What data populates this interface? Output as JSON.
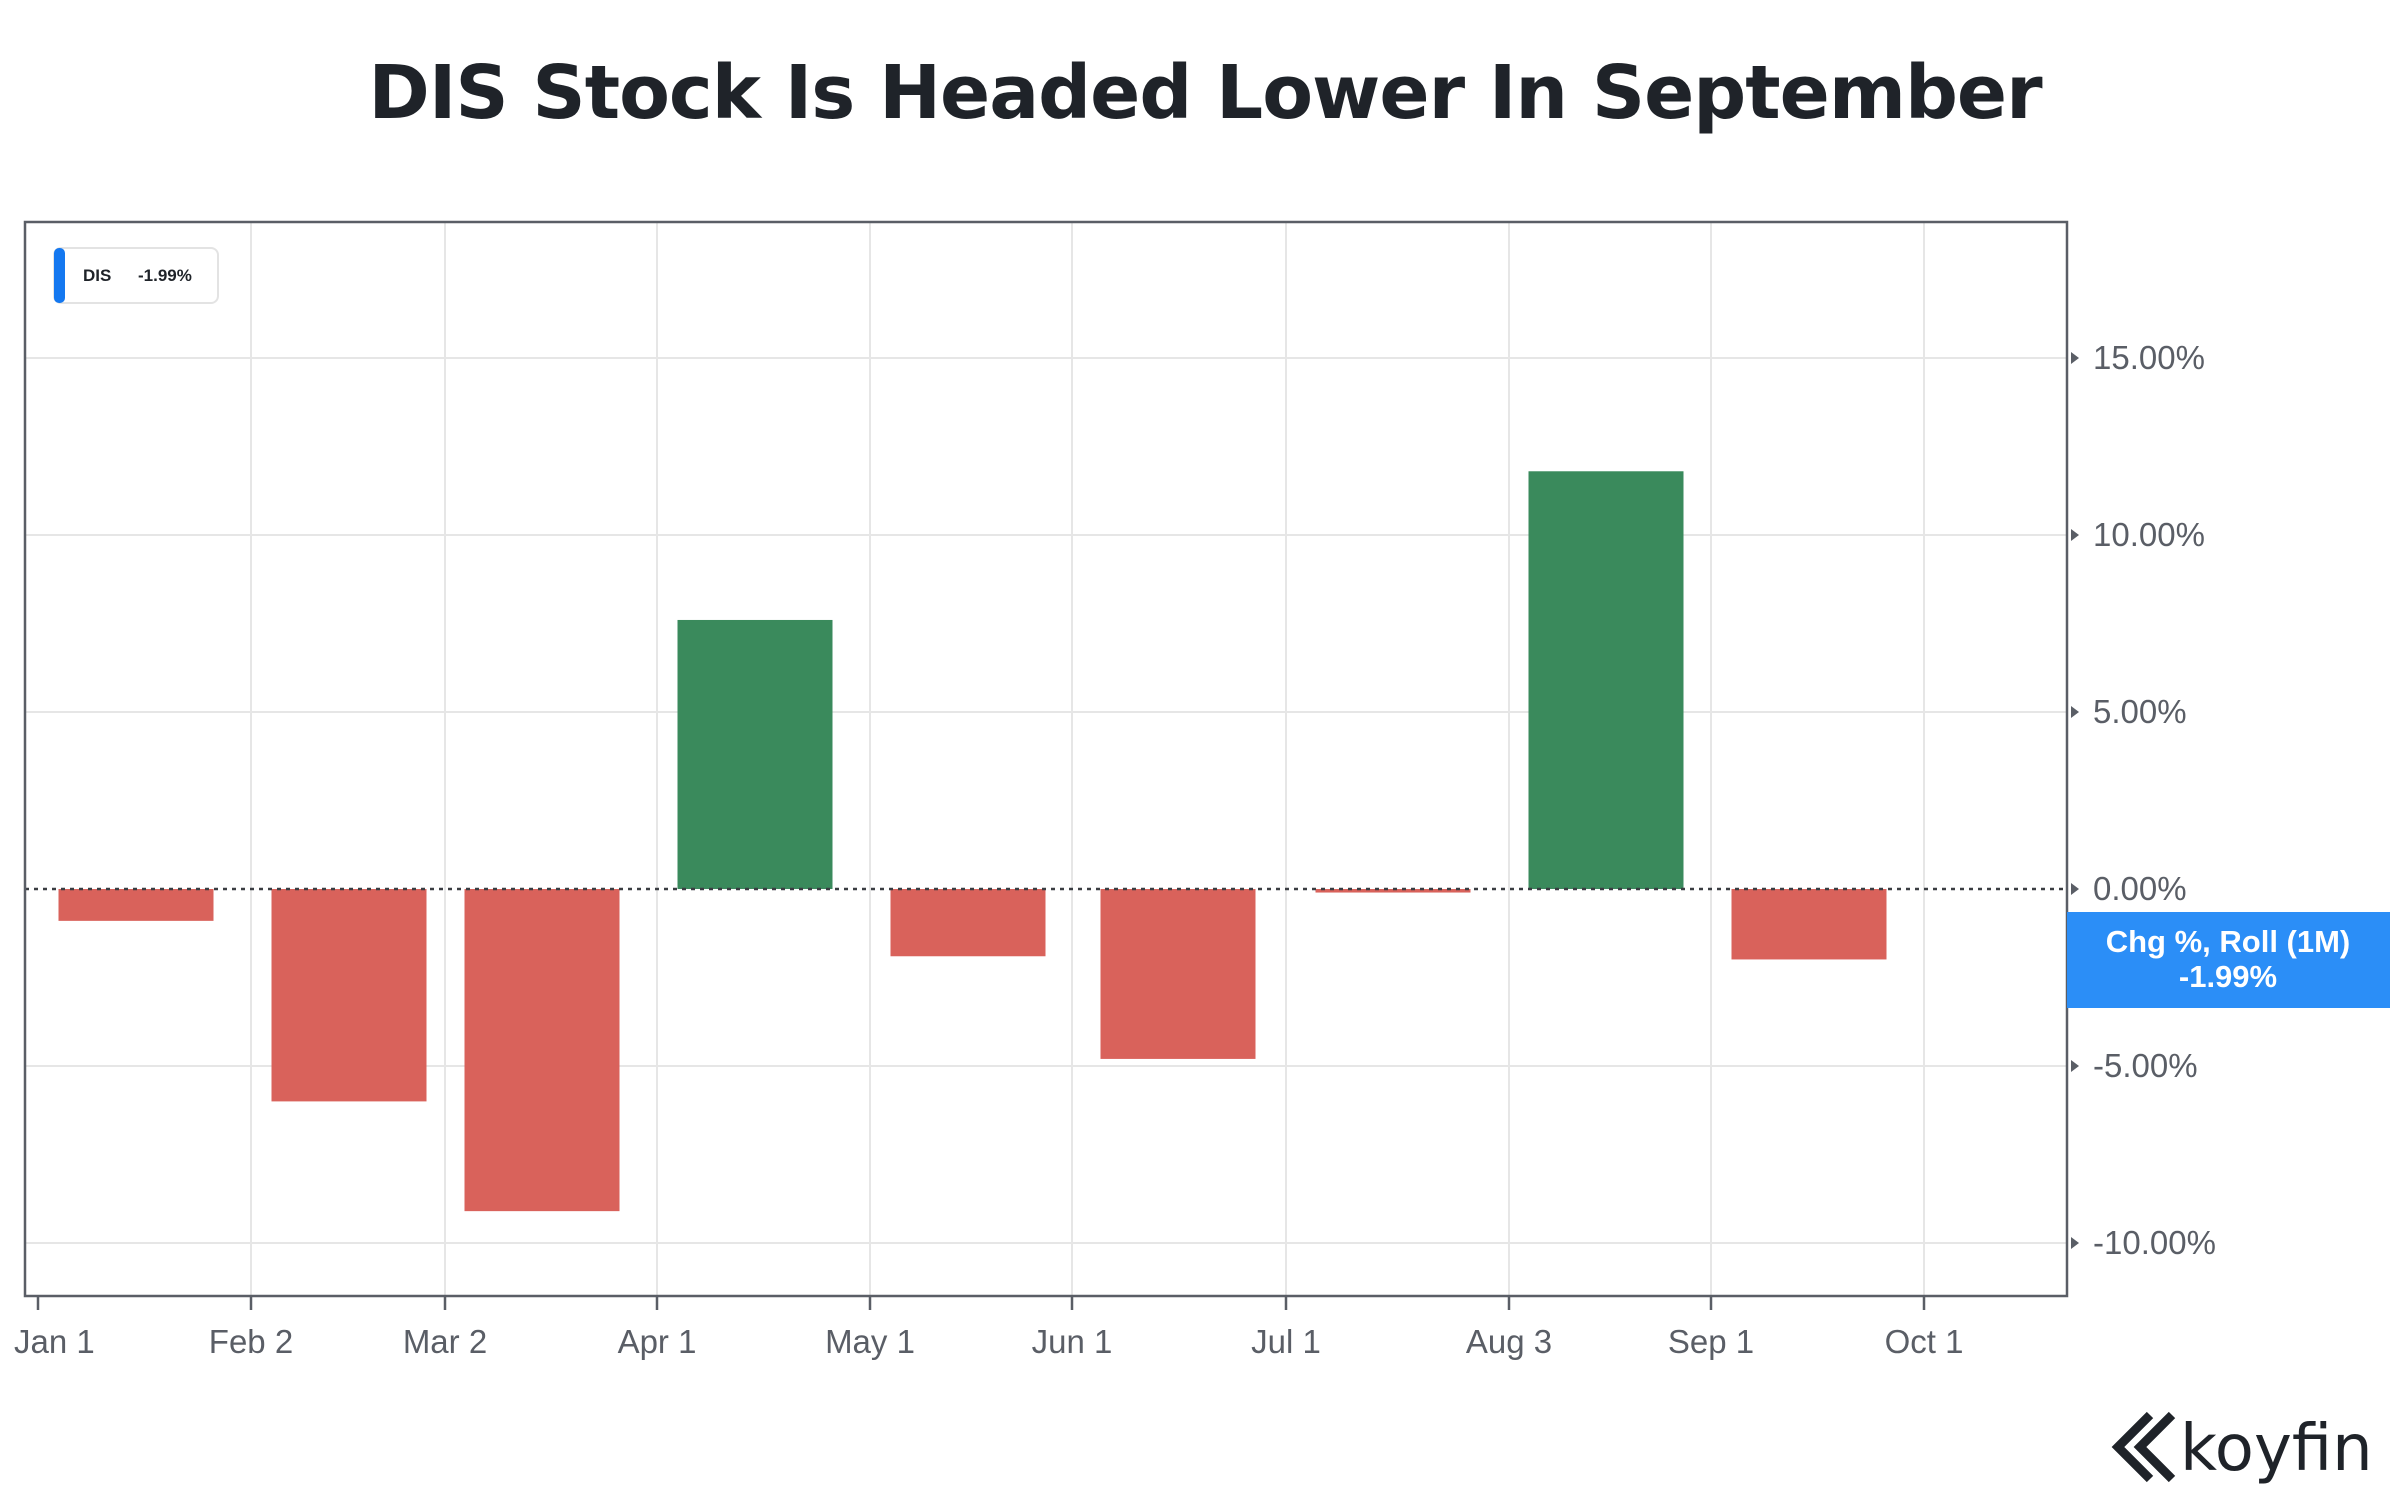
{
  "title": "DIS Stock Is Headed Lower In September",
  "legend": {
    "ticker": "DIS",
    "value": "-1.99%",
    "accent_color": "#1478f0"
  },
  "badge": {
    "line1": "Chg %, Roll (1M)",
    "line2": "-1.99%",
    "color": "#2b8ef7"
  },
  "brand": {
    "name": "koyfin",
    "icon": "koyfin-logo-icon"
  },
  "colors": {
    "positive": "#3a8a5c",
    "negative": "#d9625b",
    "grid": "#e6e6e6",
    "axis": "#5a5e66"
  },
  "chart_data": {
    "type": "bar",
    "title": "DIS Stock Is Headed Lower In September",
    "series_name": "DIS",
    "x_ticks": [
      "Jan 1",
      "Feb 2",
      "Mar 2",
      "Apr 1",
      "May 1",
      "Jun 1",
      "Jul 1",
      "Aug 3",
      "Sep 1",
      "Oct 1"
    ],
    "y_ticks": [
      "15.00%",
      "10.00%",
      "5.00%",
      "0.00%",
      "-5.00%",
      "-10.00%"
    ],
    "y_tick_values": [
      15,
      10,
      5,
      0,
      -5,
      -10
    ],
    "ylim": [
      -11.5,
      18.5
    ],
    "bars": [
      {
        "period": "Jan",
        "value": -0.9
      },
      {
        "period": "Feb",
        "value": -6.0
      },
      {
        "period": "Mar",
        "value": -9.1
      },
      {
        "period": "Apr",
        "value": 7.6
      },
      {
        "period": "May",
        "value": -1.9
      },
      {
        "period": "Jun",
        "value": -4.8
      },
      {
        "period": "Jul",
        "value": -0.1
      },
      {
        "period": "Aug",
        "value": 11.8
      },
      {
        "period": "Sep",
        "value": -1.99
      }
    ],
    "last_value": -1.99,
    "grid": true,
    "legend_position": "top-left",
    "zero_line": "dotted"
  }
}
